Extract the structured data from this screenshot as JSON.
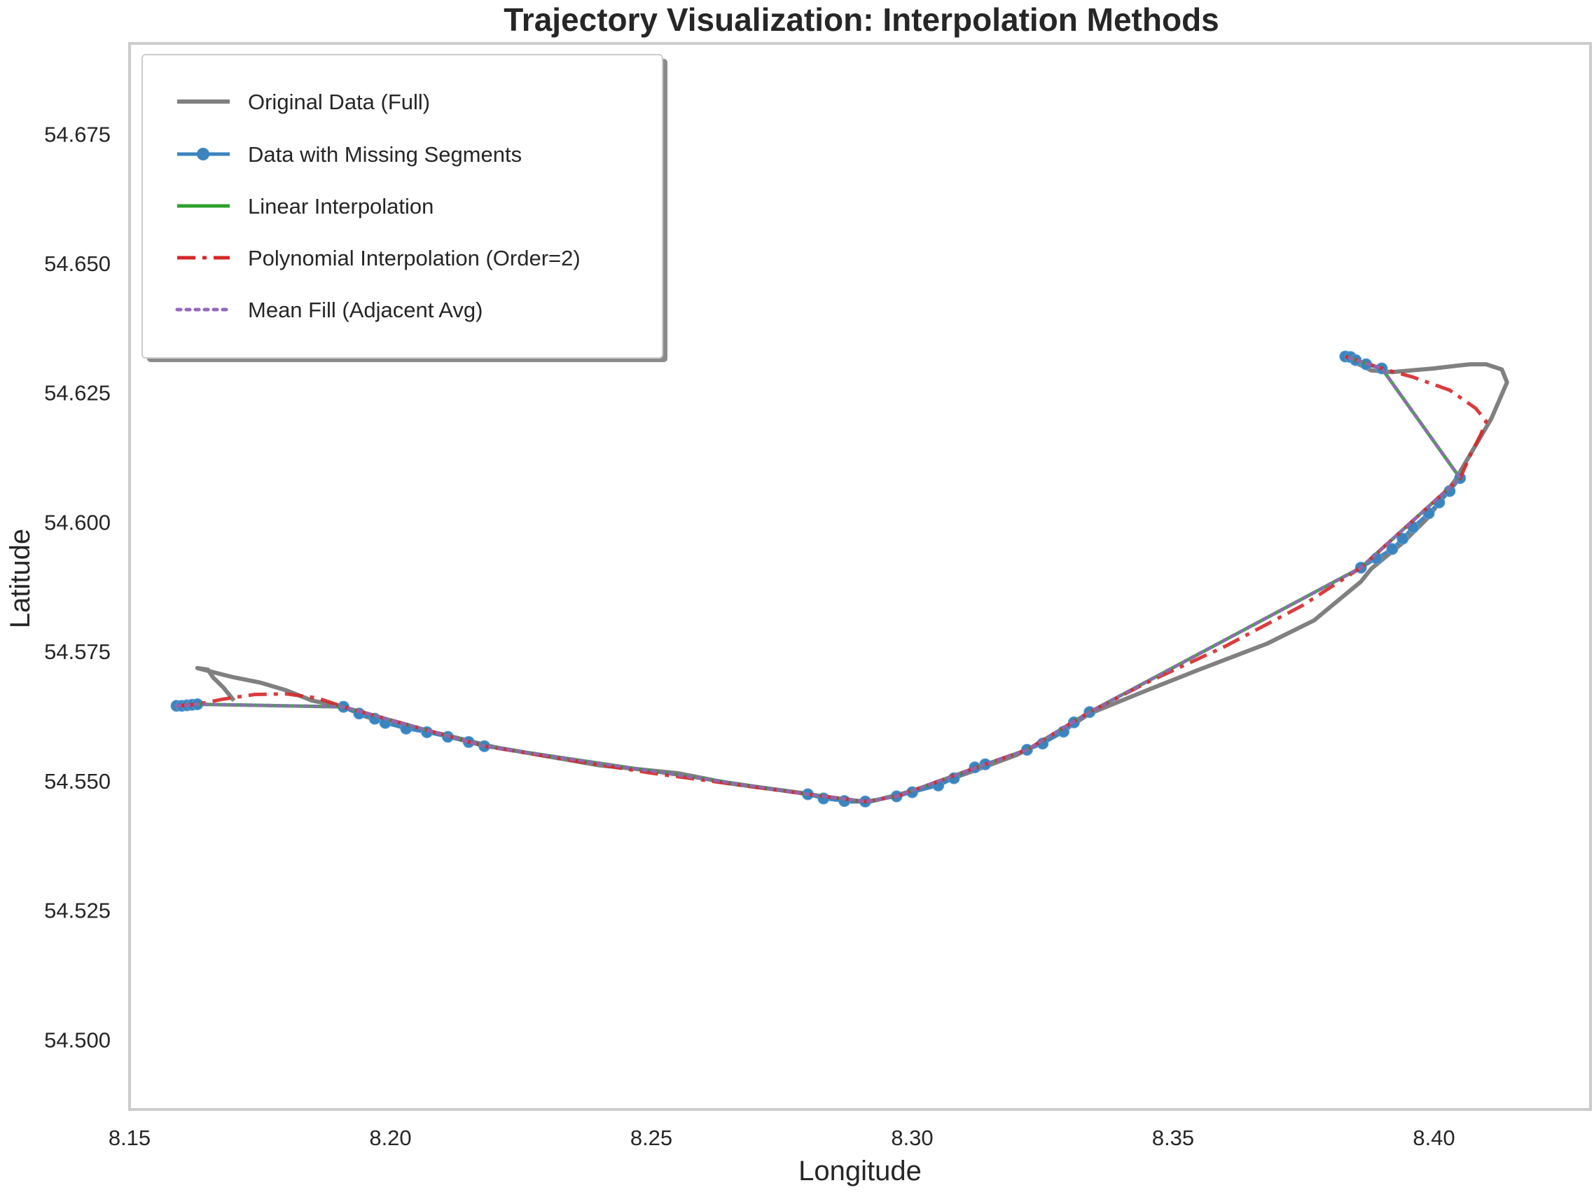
{
  "chart_data": {
    "type": "line",
    "title": "Trajectory Visualization: Interpolation Methods",
    "xlabel": "Longitude",
    "ylabel": "Latitude",
    "xlim": [
      8.15,
      8.43
    ],
    "ylim": [
      54.4865,
      54.6925
    ],
    "xticks": [
      8.15,
      8.2,
      8.25,
      8.3,
      8.35,
      8.4
    ],
    "xtick_labels": [
      "8.15",
      "8.20",
      "8.25",
      "8.30",
      "8.35",
      "8.40"
    ],
    "yticks": [
      54.5,
      54.525,
      54.55,
      54.575,
      54.6,
      54.625,
      54.65,
      54.675
    ],
    "ytick_labels": [
      "54.500",
      "54.525",
      "54.550",
      "54.575",
      "54.600",
      "54.625",
      "54.650",
      "54.675"
    ],
    "grid": false,
    "legend_position": "top-left",
    "series": [
      {
        "name": "Original Data (Full)",
        "color": "#808080",
        "style": "solid",
        "x": [
          8.17,
          8.168,
          8.166,
          8.165,
          8.163,
          8.166,
          8.17,
          8.175,
          8.18,
          8.185,
          8.191,
          8.195,
          8.2,
          8.21,
          8.22,
          8.24,
          8.255,
          8.265,
          8.28,
          8.288,
          8.292,
          8.298,
          8.305,
          8.312,
          8.32,
          8.328,
          8.334,
          8.345,
          8.355,
          8.368,
          8.377,
          8.383,
          8.386,
          8.388,
          8.394,
          8.399,
          8.404,
          8.411,
          8.414,
          8.413,
          8.41,
          8.407,
          8.405,
          8.4,
          8.392,
          8.388,
          8.383
        ],
        "y": [
          54.5655,
          54.568,
          54.57,
          54.5715,
          54.5718,
          54.571,
          54.57,
          54.569,
          54.5675,
          54.5655,
          54.5643,
          54.5625,
          54.561,
          54.559,
          54.5565,
          54.553,
          54.5515,
          54.5495,
          54.5475,
          54.546,
          54.546,
          54.5475,
          54.5495,
          54.552,
          54.555,
          54.559,
          54.563,
          54.5675,
          54.5715,
          54.5765,
          54.581,
          54.586,
          54.5885,
          54.591,
          54.596,
          54.601,
          54.608,
          54.62,
          54.627,
          54.6295,
          54.6305,
          54.6305,
          54.6303,
          54.6297,
          54.629,
          54.6293,
          54.6318
        ]
      },
      {
        "name": "Data with Missing Segments",
        "color": "#3a84bf",
        "style": "solid",
        "marker": "circle",
        "segments": [
          {
            "x": [
              8.159,
              8.16,
              8.161,
              8.162,
              8.163
            ],
            "y": [
              54.5645,
              54.5645,
              54.5646,
              54.5647,
              54.5648
            ]
          },
          {
            "x": [
              8.191,
              8.194,
              8.197,
              8.199,
              8.203,
              8.207,
              8.211,
              8.215,
              8.218
            ],
            "y": [
              54.5643,
              54.563,
              54.562,
              54.5612,
              54.5601,
              54.5594,
              54.5585,
              54.5575,
              54.5567
            ]
          },
          {
            "x": [
              8.28,
              8.283,
              8.287,
              8.291
            ],
            "y": [
              54.5474,
              54.5466,
              54.5461,
              54.546
            ]
          },
          {
            "x": [
              8.297,
              8.3,
              8.305,
              8.308,
              8.312,
              8.314
            ],
            "y": [
              54.547,
              54.5478,
              54.5491,
              54.5505,
              54.5526,
              54.5532
            ]
          },
          {
            "x": [
              8.322,
              8.325,
              8.329,
              8.331,
              8.334
            ],
            "y": [
              54.556,
              54.5572,
              54.5595,
              54.5613,
              54.5633
            ]
          },
          {
            "x": [
              8.386,
              8.389,
              8.392,
              8.394,
              8.396,
              8.399,
              8.401,
              8.403,
              8.405
            ],
            "y": [
              54.5912,
              54.593,
              54.5948,
              54.5968,
              54.599,
              54.6017,
              54.6038,
              54.606,
              54.6085
            ]
          },
          {
            "x": [
              8.383,
              8.384,
              8.385,
              8.387,
              8.39
            ],
            "y": [
              54.632,
              54.6319,
              54.6313,
              54.6305,
              54.6297
            ]
          }
        ]
      },
      {
        "name": "Linear Interpolation",
        "color": "#2ca02c",
        "style": "solid",
        "x": [
          8.159,
          8.163,
          8.191,
          8.218,
          8.28,
          8.291,
          8.297,
          8.314,
          8.322,
          8.334,
          8.386,
          8.405,
          8.39,
          8.383
        ],
        "y": [
          54.5645,
          54.5648,
          54.5643,
          54.5567,
          54.5474,
          54.546,
          54.547,
          54.5532,
          54.556,
          54.5633,
          54.5912,
          54.6085,
          54.6297,
          54.632
        ]
      },
      {
        "name": "Polynomial Interpolation (Order=2)",
        "color": "#d62728",
        "style": "dashdot",
        "x": [
          8.159,
          8.163,
          8.168,
          8.174,
          8.18,
          8.186,
          8.191,
          8.218,
          8.25,
          8.28,
          8.291,
          8.297,
          8.314,
          8.322,
          8.334,
          8.345,
          8.36,
          8.375,
          8.386,
          8.405,
          8.407,
          8.409,
          8.41,
          8.408,
          8.403,
          8.396,
          8.39,
          8.383
        ],
        "y": [
          54.5645,
          54.5648,
          54.5658,
          54.5667,
          54.5668,
          54.566,
          54.5643,
          54.5567,
          54.5515,
          54.5474,
          54.546,
          54.547,
          54.5532,
          54.556,
          54.5633,
          54.569,
          54.576,
          54.584,
          54.5912,
          54.6085,
          54.613,
          54.617,
          54.6195,
          54.622,
          54.6255,
          54.628,
          54.6297,
          54.632
        ]
      },
      {
        "name": "Mean Fill (Adjacent Avg)",
        "color": "#9467bd",
        "style": "dotted",
        "x": [
          8.159,
          8.163,
          8.191,
          8.218,
          8.28,
          8.291,
          8.297,
          8.314,
          8.322,
          8.334,
          8.386,
          8.405,
          8.39,
          8.383
        ],
        "y": [
          54.5645,
          54.5648,
          54.5643,
          54.5567,
          54.5474,
          54.546,
          54.547,
          54.5532,
          54.556,
          54.5633,
          54.5912,
          54.6085,
          54.6297,
          54.632
        ]
      }
    ]
  }
}
